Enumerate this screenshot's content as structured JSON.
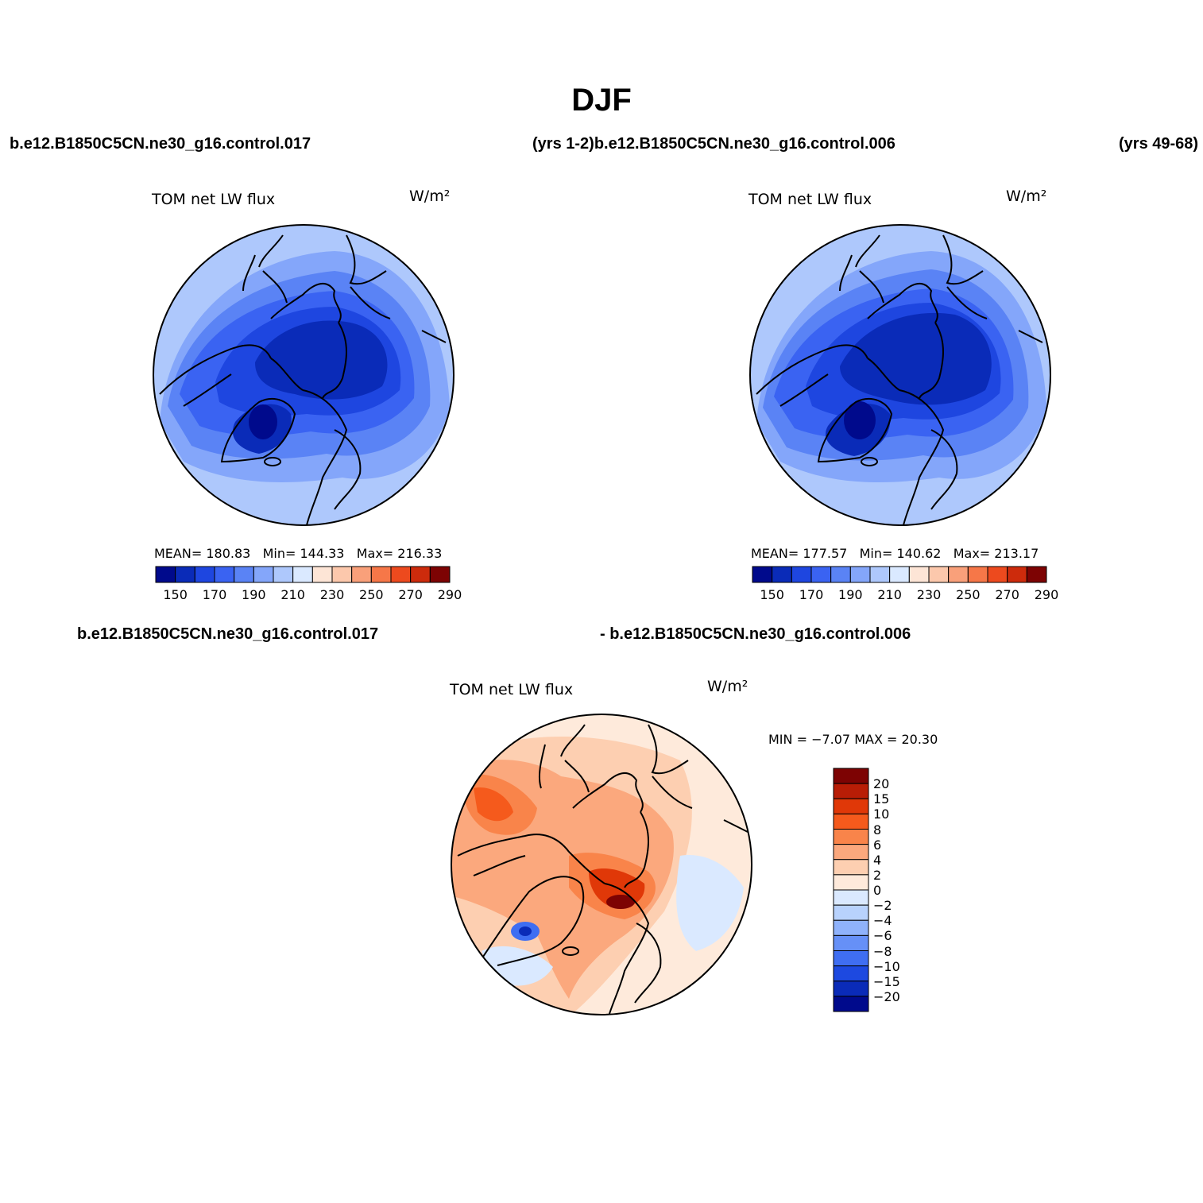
{
  "title": "DJF",
  "header": {
    "case_left": "b.e12.B1850C5CN.ne30_g16.control.017",
    "case_mid": "(yrs 1-2)b.e12.B1850C5CN.ne30_g16.control.006",
    "case_right": "(yrs 49-68)",
    "diff_left": "b.e12.B1850C5CN.ne30_g16.control.017",
    "diff_right": "- b.e12.B1850C5CN.ne30_g16.control.006"
  },
  "colors": {
    "abs_scale": [
      "#000a8c",
      "#0a2bb8",
      "#1e46e0",
      "#3a63f2",
      "#5a83f5",
      "#84a6fa",
      "#aec8fc",
      "#dae9ff",
      "#fde5d6",
      "#fcc8ac",
      "#f9a07a",
      "#f67748",
      "#ed4a1e",
      "#cd2b0c",
      "#7d0303"
    ],
    "diff_scale": [
      "#7d0303",
      "#b81d06",
      "#e03808",
      "#f55a1c",
      "#f9844a",
      "#fba87d",
      "#fdcfb1",
      "#feeadb",
      "#dae9ff",
      "#b8d2fd",
      "#8fb2fb",
      "#6690f7",
      "#3f6ef2",
      "#1d49e0",
      "#0a2bb8",
      "#000a8c"
    ]
  },
  "chart_data": [
    {
      "type": "heatmap",
      "projection": "north-polar-stereographic",
      "title": "TOM net LW flux",
      "units": "W/m²",
      "stats": {
        "mean_label": "MEAN=",
        "mean": "180.83",
        "min_label": "Min=",
        "min": "144.33",
        "max_label": "Max=",
        "max": "216.33"
      },
      "levels": [
        150,
        160,
        170,
        180,
        190,
        200,
        210,
        220,
        230,
        240,
        250,
        260,
        270,
        280
      ],
      "tick_labels": [
        "150",
        "170",
        "190",
        "210",
        "230",
        "250",
        "270",
        "290"
      ],
      "range": [
        144.33,
        216.33
      ]
    },
    {
      "type": "heatmap",
      "projection": "north-polar-stereographic",
      "title": "TOM net LW flux",
      "units": "W/m²",
      "stats": {
        "mean_label": "MEAN=",
        "mean": "177.57",
        "min_label": "Min=",
        "min": "140.62",
        "max_label": "Max=",
        "max": "213.17"
      },
      "levels": [
        150,
        160,
        170,
        180,
        190,
        200,
        210,
        220,
        230,
        240,
        250,
        260,
        270,
        280
      ],
      "tick_labels": [
        "150",
        "170",
        "190",
        "210",
        "230",
        "250",
        "270",
        "290"
      ],
      "range": [
        140.62,
        213.17
      ]
    },
    {
      "type": "heatmap",
      "projection": "north-polar-stereographic",
      "title": "TOM net LW flux",
      "units": "W/m²",
      "stats_text": "MIN =   −7.07 MAX =   20.30",
      "min": -7.07,
      "max": 20.3,
      "levels": [
        20,
        15,
        10,
        8,
        6,
        4,
        2,
        0,
        -2,
        -4,
        -6,
        -8,
        -10,
        -15,
        -20
      ],
      "tick_labels": [
        "20",
        "15",
        "10",
        "8",
        "6",
        "4",
        "2",
        "0",
        "−2",
        "−4",
        "−6",
        "−8",
        "−10",
        "−15",
        "−20"
      ]
    }
  ]
}
